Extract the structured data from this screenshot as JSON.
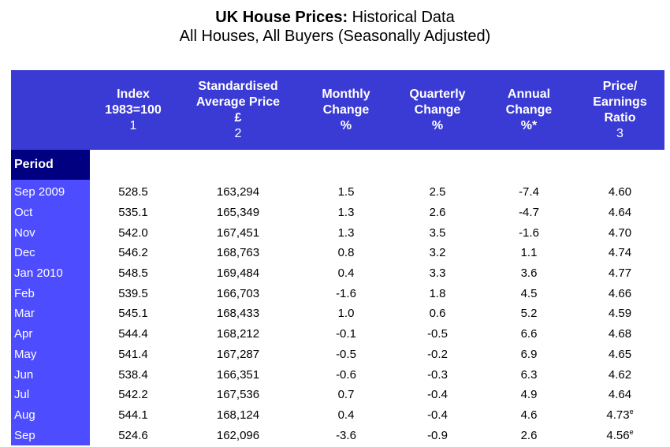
{
  "title": {
    "bold": "UK House Prices:",
    "rest": "Historical Data",
    "subtitle": "All Houses, All Buyers (Seasonally Adjusted)"
  },
  "headers": [
    {
      "lines": [
        "Index",
        "1983=100"
      ],
      "note": "1"
    },
    {
      "lines": [
        "Standardised",
        "Average Price",
        "£"
      ],
      "note": "2"
    },
    {
      "lines": [
        "Monthly",
        "Change",
        "%"
      ],
      "note": ""
    },
    {
      "lines": [
        "Quarterly",
        "Change",
        "%"
      ],
      "note": ""
    },
    {
      "lines": [
        "Annual",
        "Change",
        "%*"
      ],
      "note": ""
    },
    {
      "lines": [
        "Price/",
        "Earnings",
        "Ratio"
      ],
      "note": "3"
    }
  ],
  "period_label": "Period",
  "rows": [
    {
      "period": "Sep 2009",
      "index": "528.5",
      "price": "163,294",
      "monthly": "1.5",
      "quarterly": "2.5",
      "annual": "-7.4",
      "pe": "4.60",
      "pe_sup": ""
    },
    {
      "period": "Oct",
      "index": "535.1",
      "price": "165,349",
      "monthly": "1.3",
      "quarterly": "2.6",
      "annual": "-4.7",
      "pe": "4.64",
      "pe_sup": ""
    },
    {
      "period": "Nov",
      "index": "542.0",
      "price": "167,451",
      "monthly": "1.3",
      "quarterly": "3.5",
      "annual": "-1.6",
      "pe": "4.70",
      "pe_sup": ""
    },
    {
      "period": "Dec",
      "index": "546.2",
      "price": "168,763",
      "monthly": "0.8",
      "quarterly": "3.2",
      "annual": "1.1",
      "pe": "4.74",
      "pe_sup": ""
    },
    {
      "period": "Jan 2010",
      "index": "548.5",
      "price": "169,484",
      "monthly": "0.4",
      "quarterly": "3.3",
      "annual": "3.6",
      "pe": "4.77",
      "pe_sup": ""
    },
    {
      "period": "Feb",
      "index": "539.5",
      "price": "166,703",
      "monthly": "-1.6",
      "quarterly": "1.8",
      "annual": "4.5",
      "pe": "4.66",
      "pe_sup": ""
    },
    {
      "period": "Mar",
      "index": "545.1",
      "price": "168,433",
      "monthly": "1.0",
      "quarterly": "0.6",
      "annual": "5.2",
      "pe": "4.59",
      "pe_sup": ""
    },
    {
      "period": "Apr",
      "index": "544.4",
      "price": "168,212",
      "monthly": "-0.1",
      "quarterly": "-0.5",
      "annual": "6.6",
      "pe": "4.68",
      "pe_sup": ""
    },
    {
      "period": "May",
      "index": "541.4",
      "price": "167,287",
      "monthly": "-0.5",
      "quarterly": "-0.2",
      "annual": "6.9",
      "pe": "4.65",
      "pe_sup": ""
    },
    {
      "period": "Jun",
      "index": "538.4",
      "price": "166,351",
      "monthly": "-0.6",
      "quarterly": "-0.3",
      "annual": "6.3",
      "pe": "4.62",
      "pe_sup": ""
    },
    {
      "period": "Jul",
      "index": "542.2",
      "price": "167,536",
      "monthly": "0.7",
      "quarterly": "-0.4",
      "annual": "4.9",
      "pe": "4.64",
      "pe_sup": ""
    },
    {
      "period": "Aug",
      "index": "544.1",
      "price": "168,124",
      "monthly": "0.4",
      "quarterly": "-0.4",
      "annual": "4.6",
      "pe": "4.73",
      "pe_sup": "e"
    },
    {
      "period": "Sep",
      "index": "524.6",
      "price": "162,096",
      "monthly": "-3.6",
      "quarterly": "-0.9",
      "annual": "2.6",
      "pe": "4.56",
      "pe_sup": "e"
    }
  ]
}
